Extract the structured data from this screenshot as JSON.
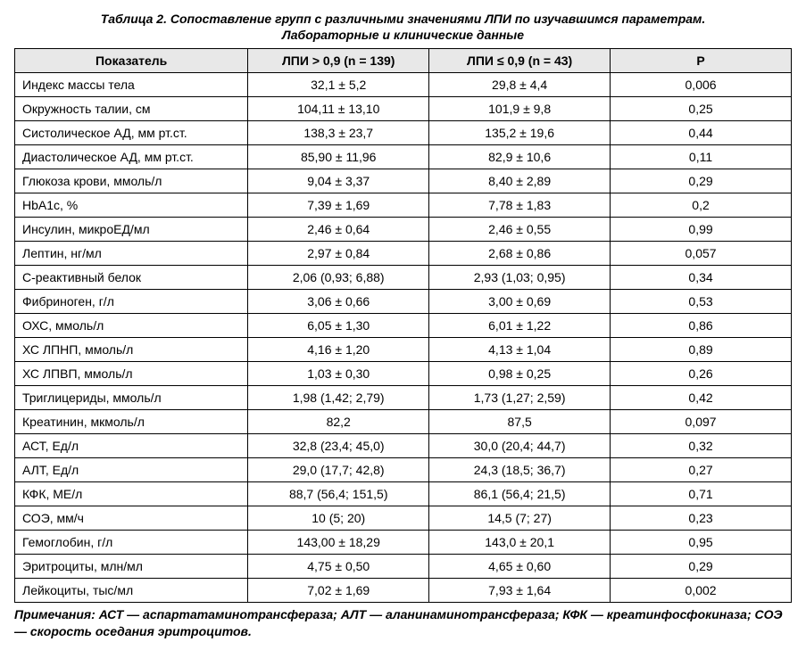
{
  "title_lines": [
    "Таблица 2. Сопоставление групп с различными значениями ЛПИ по изучавшимся параметрам.",
    "Лабораторные и клинические данные"
  ],
  "headers": [
    "Показатель",
    "ЛПИ > 0,9 (n = 139)",
    "ЛПИ ≤ 0,9 (n = 43)",
    "Р"
  ],
  "rows": [
    {
      "label": "Индекс массы тела",
      "v1": "32,1 ± 5,2",
      "v2": "29,8 ± 4,4",
      "p": "0,006"
    },
    {
      "label": "Окружность талии, см",
      "v1": "104,11 ± 13,10",
      "v2": "101,9 ± 9,8",
      "p": "0,25"
    },
    {
      "label": "Систолическое АД, мм рт.ст.",
      "v1": "138,3 ± 23,7",
      "v2": "135,2 ± 19,6",
      "p": "0,44"
    },
    {
      "label": "Диастолическое АД, мм рт.ст.",
      "v1": "85,90 ± 11,96",
      "v2": "82,9 ± 10,6",
      "p": "0,11"
    },
    {
      "label": "Глюкоза крови, ммоль/л",
      "v1": "9,04 ± 3,37",
      "v2": "8,40 ± 2,89",
      "p": "0,29"
    },
    {
      "label": "HbA1c, %",
      "v1": "7,39 ± 1,69",
      "v2": "7,78 ± 1,83",
      "p": "0,2"
    },
    {
      "label": "Инсулин, микроЕД/мл",
      "v1": "2,46 ± 0,64",
      "v2": "2,46 ± 0,55",
      "p": "0,99"
    },
    {
      "label": "Лептин, нг/мл",
      "v1": "2,97 ± 0,84",
      "v2": "2,68 ± 0,86",
      "p": "0,057"
    },
    {
      "label": "С-реактивный белок",
      "v1": "2,06 (0,93; 6,88)",
      "v2": "2,93 (1,03; 0,95)",
      "p": "0,34"
    },
    {
      "label": "Фибриноген, г/л",
      "v1": "3,06 ± 0,66",
      "v2": "3,00 ± 0,69",
      "p": "0,53"
    },
    {
      "label": "ОХС, ммоль/л",
      "v1": "6,05 ± 1,30",
      "v2": "6,01 ± 1,22",
      "p": "0,86"
    },
    {
      "label": "ХС ЛПНП, ммоль/л",
      "v1": "4,16 ± 1,20",
      "v2": "4,13 ± 1,04",
      "p": "0,89"
    },
    {
      "label": "ХС ЛПВП, ммоль/л",
      "v1": "1,03 ± 0,30",
      "v2": "0,98 ± 0,25",
      "p": "0,26"
    },
    {
      "label": "Триглицериды, ммоль/л",
      "v1": "1,98 (1,42; 2,79)",
      "v2": "1,73 (1,27; 2,59)",
      "p": "0,42"
    },
    {
      "label": "Креатинин, мкмоль/л",
      "v1": "82,2",
      "v2": "87,5",
      "p": "0,097"
    },
    {
      "label": "АСТ, Ед/л",
      "v1": "32,8 (23,4; 45,0)",
      "v2": "30,0 (20,4; 44,7)",
      "p": "0,32"
    },
    {
      "label": "АЛТ, Ед/л",
      "v1": "29,0 (17,7; 42,8)",
      "v2": "24,3 (18,5; 36,7)",
      "p": "0,27"
    },
    {
      "label": "КФК, МЕ/л",
      "v1": "88,7 (56,4; 151,5)",
      "v2": "86,1 (56,4; 21,5)",
      "p": "0,71"
    },
    {
      "label": "СОЭ, мм/ч",
      "v1": "10 (5; 20)",
      "v2": "14,5 (7; 27)",
      "p": "0,23"
    },
    {
      "label": "Гемоглобин, г/л",
      "v1": "143,00 ± 18,29",
      "v2": "143,0 ± 20,1",
      "p": "0,95"
    },
    {
      "label": "Эритроциты, млн/мл",
      "v1": "4,75 ± 0,50",
      "v2": "4,65 ± 0,60",
      "p": "0,29"
    },
    {
      "label": "Лейкоциты, тыс/мл",
      "v1": "7,02 ± 1,69",
      "v2": "7,93 ± 1,64",
      "p": "0,002"
    }
  ],
  "footnote": "Примечания: АСТ — аспартатаминотрансфераза; АЛТ — аланинаминотрансфераза; КФК — креатинфосфокиназа; СОЭ — скорость оседания эритроцитов."
}
